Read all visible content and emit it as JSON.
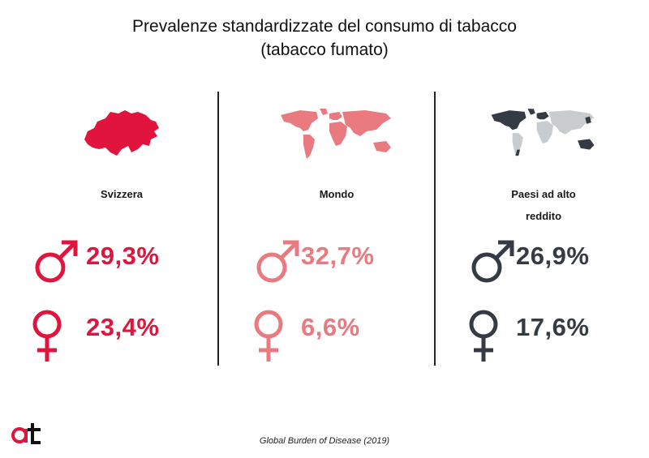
{
  "title_line1": "Prevalenze standardizzate del consumo di tabacco",
  "title_line2": "(tabacco fumato)",
  "source": "Global Burden of Disease (2019)",
  "chart_data": {
    "type": "table",
    "unit": "%",
    "columns": [
      {
        "region": "Svizzera",
        "region_line2": "",
        "male": "29,3%",
        "female": "23,4%",
        "male_value": 29.3,
        "female_value": 23.4,
        "color": "#e0143c",
        "map_icon": "switzerland-map-icon"
      },
      {
        "region": "Mondo",
        "region_line2": "",
        "male": "32,7%",
        "female": "6,6%",
        "male_value": 32.7,
        "female_value": 6.6,
        "color": "#e87a80",
        "map_icon": "world-map-icon"
      },
      {
        "region": "Paesi ad alto",
        "region_line2": "reddito",
        "male": "26,9%",
        "female": "17,6%",
        "male_value": 26.9,
        "female_value": 17.6,
        "color": "#353b45",
        "map_icon": "high-income-world-map-icon"
      }
    ]
  },
  "icons": {
    "male": "male-symbol-icon",
    "female": "female-symbol-icon",
    "logo": "at-logo-icon"
  },
  "colors": {
    "divider": "#222222",
    "map_gray": "#c9ccce"
  }
}
